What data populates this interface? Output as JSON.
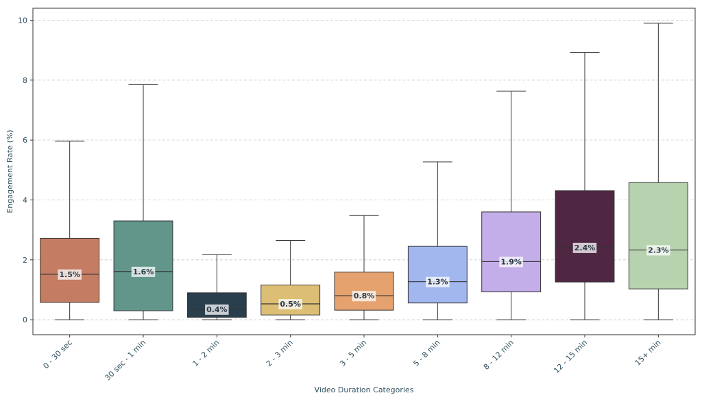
{
  "chart_data": {
    "type": "boxplot",
    "title": "",
    "xlabel": "Video Duration Categories",
    "ylabel": "Engagement Rate (%)",
    "ylim": [
      -0.5,
      10.4
    ],
    "yticks": [
      0,
      2,
      4,
      6,
      8,
      10
    ],
    "grid": "horizontal dashed",
    "categories": [
      "0 - 30 sec",
      "30 sec - 1 min",
      "1 - 2 min",
      "2 - 3 min",
      "3 - 5 min",
      "5 - 8 min",
      "8 - 12 min",
      "12 - 15 min",
      "15+ min"
    ],
    "boxes": [
      {
        "min": 0,
        "q1": 0.58,
        "median": 1.52,
        "q3": 2.72,
        "max": 5.96,
        "label": "1.5%",
        "color": "#c47c63"
      },
      {
        "min": 0,
        "q1": 0.3,
        "median": 1.61,
        "q3": 3.3,
        "max": 7.85,
        "label": "1.6%",
        "color": "#62968a"
      },
      {
        "min": 0,
        "q1": 0.08,
        "median": 0.35,
        "q3": 0.9,
        "max": 2.17,
        "label": "0.4%",
        "color": "#2a3f4d"
      },
      {
        "min": 0,
        "q1": 0.16,
        "median": 0.53,
        "q3": 1.16,
        "max": 2.65,
        "label": "0.5%",
        "color": "#dcbf74"
      },
      {
        "min": 0,
        "q1": 0.32,
        "median": 0.8,
        "q3": 1.59,
        "max": 3.48,
        "label": "0.8%",
        "color": "#e5a26f"
      },
      {
        "min": 0,
        "q1": 0.56,
        "median": 1.27,
        "q3": 2.45,
        "max": 5.27,
        "label": "1.3%",
        "color": "#a3b7ef"
      },
      {
        "min": 0,
        "q1": 0.93,
        "median": 1.94,
        "q3": 3.6,
        "max": 7.63,
        "label": "1.9%",
        "color": "#c4aeea"
      },
      {
        "min": 0,
        "q1": 1.26,
        "median": 2.41,
        "q3": 4.31,
        "max": 8.92,
        "label": "2.4%",
        "color": "#4f2742"
      },
      {
        "min": 0,
        "q1": 1.03,
        "median": 2.33,
        "q3": 4.58,
        "max": 9.9,
        "label": "2.3%",
        "color": "#b7d2ae"
      }
    ]
  }
}
